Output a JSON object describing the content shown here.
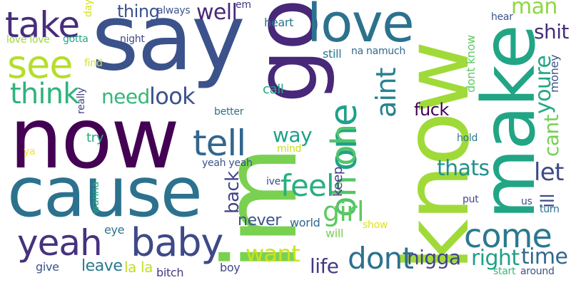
{
  "word_cloud": {
    "background": "#ffffff",
    "words": [
      {
        "text": "im",
        "color": "#7ad151"
      },
      {
        "text": "say",
        "color": "#3b528b"
      },
      {
        "text": "now",
        "color": "#440154"
      },
      {
        "text": "cause",
        "color": "#2c728e"
      },
      {
        "text": "go",
        "color": "#482878"
      },
      {
        "text": "know",
        "color": "#a0da39"
      },
      {
        "text": "make",
        "color": "#21a585"
      },
      {
        "text": "love",
        "color": "#2c728e"
      },
      {
        "text": "take",
        "color": "#472d7b"
      },
      {
        "text": "see",
        "color": "#b5de2b"
      },
      {
        "text": "think",
        "color": "#2fb47c"
      },
      {
        "text": "yeah",
        "color": "#46327e"
      },
      {
        "text": "baby",
        "color": "#3e4989"
      },
      {
        "text": "tell",
        "color": "#31668e"
      },
      {
        "text": "one",
        "color": "#1fa188"
      },
      {
        "text": "oh oh",
        "color": "#52c569"
      },
      {
        "text": "aint",
        "color": "#26828e"
      },
      {
        "text": "come",
        "color": "#2a788e"
      },
      {
        "text": "dont",
        "color": "#2c728e"
      },
      {
        "text": "want",
        "color": "#cde11d"
      },
      {
        "text": "feel",
        "color": "#29af7f"
      },
      {
        "text": "girl",
        "color": "#5ec962"
      },
      {
        "text": "let",
        "color": "#3e4989"
      },
      {
        "text": "time",
        "color": "#31688e"
      },
      {
        "text": "right",
        "color": "#1fa188"
      },
      {
        "text": "nigga",
        "color": "#414487"
      },
      {
        "text": "life",
        "color": "#443a83"
      },
      {
        "text": "need",
        "color": "#35b779"
      },
      {
        "text": "look",
        "color": "#3b528b"
      },
      {
        "text": "well",
        "color": "#482878"
      },
      {
        "text": "thing",
        "color": "#3b528b"
      },
      {
        "text": "man",
        "color": "#8fd744"
      },
      {
        "text": "shit",
        "color": "#472d7b"
      },
      {
        "text": "youre",
        "color": "#22a884"
      },
      {
        "text": "cant",
        "color": "#75d054"
      },
      {
        "text": "thats",
        "color": "#21918c"
      },
      {
        "text": "fuck",
        "color": "#440154"
      },
      {
        "text": "way",
        "color": "#1fa188"
      },
      {
        "text": "back",
        "color": "#414487"
      },
      {
        "text": "never",
        "color": "#3b528b"
      },
      {
        "text": "leave",
        "color": "#2a788e"
      },
      {
        "text": "la la",
        "color": "#c2df23"
      },
      {
        "text": "ill",
        "color": "#3e4989"
      },
      {
        "text": "money",
        "color": "#3b528b"
      },
      {
        "text": "dont know",
        "color": "#5ec962"
      },
      {
        "text": "keep",
        "color": "#433e85"
      },
      {
        "text": "eye",
        "color": "#2c728e"
      },
      {
        "text": "give",
        "color": "#3b528b"
      },
      {
        "text": "bitch",
        "color": "#443a83"
      },
      {
        "text": "boy",
        "color": "#3e4989"
      },
      {
        "text": "world",
        "color": "#31688e"
      },
      {
        "text": "will",
        "color": "#7ad151"
      },
      {
        "text": "show",
        "color": "#dce319"
      },
      {
        "text": "call",
        "color": "#22a884"
      },
      {
        "text": "still",
        "color": "#2a788e"
      },
      {
        "text": "na namuch",
        "color": "#31688e"
      },
      {
        "text": "heart",
        "color": "#2a788e"
      },
      {
        "text": "em",
        "color": "#46337f"
      },
      {
        "text": "always",
        "color": "#3b528b"
      },
      {
        "text": "day",
        "color": "#d2e21b"
      },
      {
        "text": "love love",
        "color": "#9bd93c"
      },
      {
        "text": "gotta",
        "color": "#22a884"
      },
      {
        "text": "night",
        "color": "#3e4989"
      },
      {
        "text": "find",
        "color": "#d8e219"
      },
      {
        "text": "really",
        "color": "#414487"
      },
      {
        "text": "better",
        "color": "#2c728e"
      },
      {
        "text": "try",
        "color": "#22a884"
      },
      {
        "text": "mind",
        "color": "#c2df23"
      },
      {
        "text": "ya",
        "color": "#f1e51d"
      },
      {
        "text": "yeah yeah",
        "color": "#3b528b"
      },
      {
        "text": "ive",
        "color": "#3e4989"
      },
      {
        "text": "wanna",
        "color": "#22a884"
      },
      {
        "text": "hear",
        "color": "#3b528b"
      },
      {
        "text": "hold",
        "color": "#2a788e"
      },
      {
        "text": "put",
        "color": "#3e4989"
      },
      {
        "text": "us",
        "color": "#3e4989"
      },
      {
        "text": "turn",
        "color": "#2c728e"
      },
      {
        "text": "start",
        "color": "#35b779"
      },
      {
        "text": "around",
        "color": "#3b528b"
      }
    ]
  }
}
